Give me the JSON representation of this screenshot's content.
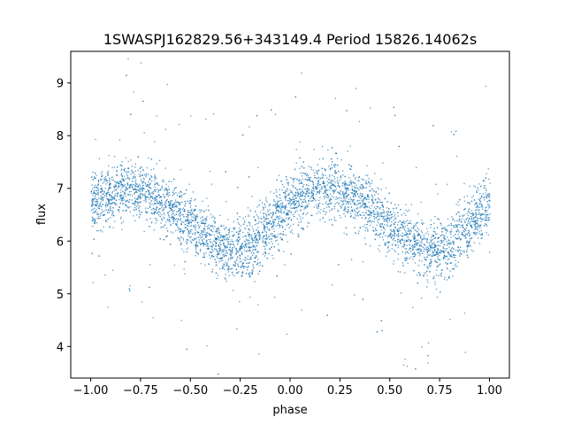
{
  "chart_data": {
    "type": "scatter",
    "title": "1SWASPJ162829.56+343149.4 Period 15826.14062s",
    "xlabel": "phase",
    "ylabel": "flux",
    "xlim": [
      -1.1,
      1.1
    ],
    "ylim": [
      3.4,
      9.6
    ],
    "xticks": [
      -1.0,
      -0.75,
      -0.5,
      -0.25,
      0.0,
      0.25,
      0.5,
      0.75,
      1.0
    ],
    "xtick_labels": [
      "−1.00",
      "−0.75",
      "−0.50",
      "−0.25",
      "0.00",
      "0.25",
      "0.50",
      "0.75",
      "1.00"
    ],
    "yticks": [
      4,
      5,
      6,
      7,
      8,
      9
    ],
    "ytick_labels": [
      "4",
      "5",
      "6",
      "7",
      "8",
      "9"
    ],
    "grid": false,
    "color": "#1f77b4",
    "x_range": [
      -1.0,
      1.0
    ],
    "series": [
      {
        "phase": [
          -1.0,
          -0.9,
          -0.8,
          -0.7,
          -0.6,
          -0.5,
          -0.4,
          -0.3,
          -0.2,
          -0.1,
          0.0,
          0.1,
          0.2,
          0.3,
          0.4,
          0.5,
          0.6,
          0.7,
          0.8,
          0.9,
          1.0
        ],
        "mean_flux": [
          6.75,
          6.9,
          7.0,
          6.9,
          6.65,
          6.3,
          6.0,
          5.8,
          5.9,
          6.3,
          6.75,
          6.9,
          7.0,
          6.9,
          6.65,
          6.3,
          6.0,
          5.8,
          5.9,
          6.3,
          6.75
        ],
        "scatter_sigma": 0.28
      }
    ]
  }
}
